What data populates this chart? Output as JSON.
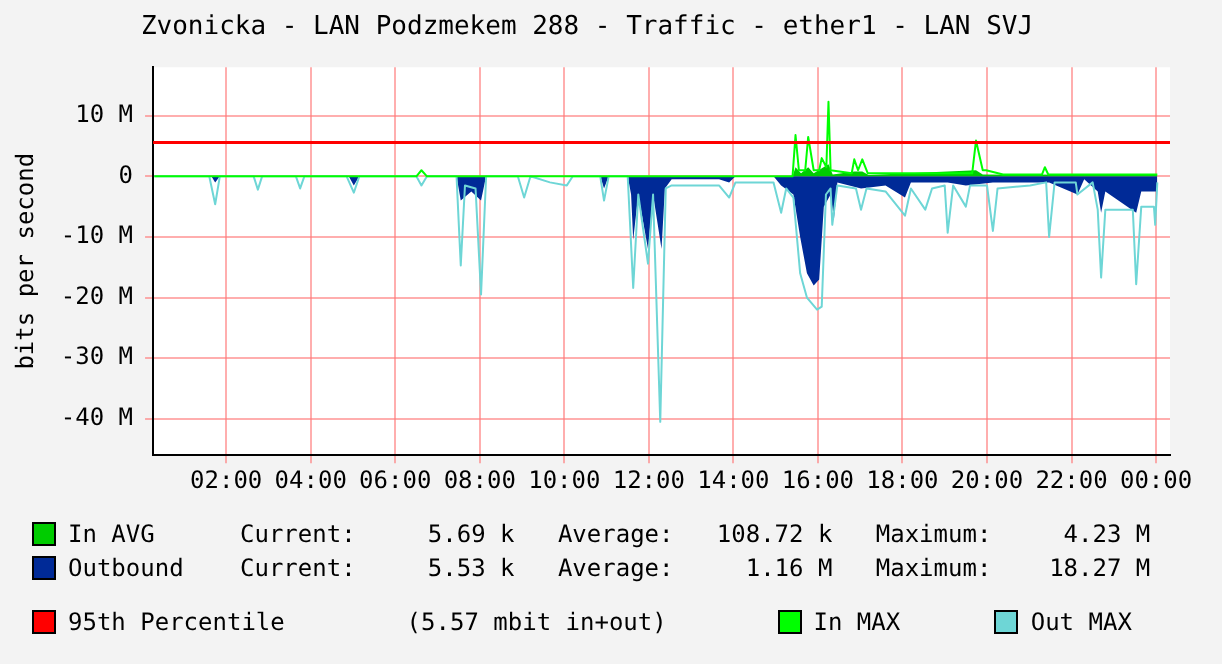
{
  "chart_data": {
    "type": "area",
    "title": "Zvonicka - LAN Podzmekem 288 - Traffic - ether1 - LAN SVJ",
    "ylabel": "bits per second",
    "xlim": [
      0.27,
      24.33
    ],
    "xticks": [
      {
        "value": 2,
        "label": "02:00"
      },
      {
        "value": 4,
        "label": "04:00"
      },
      {
        "value": 6,
        "label": "06:00"
      },
      {
        "value": 8,
        "label": "08:00"
      },
      {
        "value": 10,
        "label": "10:00"
      },
      {
        "value": 12,
        "label": "12:00"
      },
      {
        "value": 14,
        "label": "14:00"
      },
      {
        "value": 16,
        "label": "16:00"
      },
      {
        "value": 18,
        "label": "18:00"
      },
      {
        "value": 20,
        "label": "20:00"
      },
      {
        "value": 22,
        "label": "22:00"
      },
      {
        "value": 24,
        "label": "00:00"
      }
    ],
    "ylim": [
      -46,
      18
    ],
    "yticks": [
      {
        "value": -40,
        "label": "-40 M"
      },
      {
        "value": -30,
        "label": "-30 M"
      },
      {
        "value": -20,
        "label": "-20 M"
      },
      {
        "value": -10,
        "label": "-10 M"
      },
      0,
      {
        "value": 10,
        "label": "10 M"
      }
    ],
    "grid": true,
    "legend": "bottom",
    "series": [
      {
        "name": "In AVG",
        "color": "#00cc00",
        "x": [
          0.3,
          15.4,
          15.47,
          15.6,
          15.77,
          15.9,
          16.25,
          16.35,
          16.86,
          17.05,
          17.2,
          19.74,
          19.9,
          24.03
        ],
        "values": [
          0,
          0,
          1.5,
          0.5,
          1.5,
          0.5,
          2,
          0.3,
          0.8,
          0.8,
          0.2,
          1,
          0.3,
          0.2
        ]
      },
      {
        "name": "Outbound",
        "color": "#002a97",
        "x": [
          0.3,
          1.65,
          1.74,
          1.85,
          4.9,
          5.02,
          5.15,
          7.45,
          7.55,
          7.8,
          8.03,
          8.15,
          10.85,
          10.94,
          11.05,
          11.5,
          11.58,
          11.63,
          11.75,
          11.98,
          12.1,
          12.3,
          12.38,
          12.54,
          13.66,
          13.9,
          14.05,
          14.95,
          15.13,
          15.42,
          15.58,
          15.74,
          15.9,
          16.03,
          16.14,
          16.3,
          16.38,
          16.46,
          17.02,
          17.6,
          18.06,
          18.2,
          19.07,
          19.5,
          20.14,
          21.47,
          22.14,
          22.3,
          22.62,
          22.7,
          22.8,
          23.53,
          23.65,
          24.03
        ],
        "values": [
          0,
          0,
          -1,
          0,
          0,
          -1.5,
          0,
          0,
          -4,
          -2.5,
          -4,
          0,
          0,
          -2,
          0,
          0,
          -3,
          -10.5,
          -3,
          -12,
          -3,
          -12,
          -2,
          -0.5,
          -0.5,
          -1,
          0,
          0,
          -1.5,
          -3,
          -10,
          -16,
          -18,
          -17,
          -5,
          -3,
          -7,
          -1,
          -2,
          -1.5,
          -3.5,
          -1,
          -1,
          -1.5,
          -1,
          -1,
          -3,
          -0.5,
          -2.5,
          -6,
          -2.5,
          -6,
          -2.5,
          -2.5
        ]
      },
      {
        "name": "In MAX",
        "type": "line",
        "color": "#00ff00",
        "x": [
          0.3,
          6.5,
          6.62,
          6.75,
          15.4,
          15.47,
          15.55,
          15.61,
          15.7,
          15.77,
          15.9,
          16.03,
          16.09,
          16.2,
          16.25,
          16.3,
          16.8,
          16.86,
          16.95,
          17.05,
          17.18,
          19.65,
          19.74,
          19.9,
          19.98,
          20.38,
          21.3,
          21.37,
          21.45,
          24.03
        ],
        "values": [
          0,
          0,
          1,
          0,
          0,
          6.8,
          1,
          1,
          1,
          6.5,
          1,
          1,
          3,
          1.5,
          12.3,
          1,
          0.5,
          2.8,
          1,
          2.8,
          0.5,
          0.5,
          5.9,
          1,
          1,
          0.3,
          0.3,
          1.5,
          0.3,
          0.3
        ]
      },
      {
        "name": "Out MAX",
        "type": "line",
        "color": "#6ed6d6",
        "x": [
          0.3,
          1.6,
          1.74,
          1.85,
          2.65,
          2.75,
          2.85,
          3.65,
          3.75,
          3.85,
          4.85,
          5.02,
          5.15,
          6.5,
          6.62,
          6.75,
          7.45,
          7.55,
          7.65,
          7.9,
          8.03,
          8.15,
          8.9,
          9.05,
          9.2,
          9.66,
          10.06,
          10.2,
          10.85,
          10.94,
          11.05,
          11.5,
          11.63,
          11.75,
          11.98,
          12.1,
          12.27,
          12.4,
          12.54,
          13.66,
          13.9,
          14.05,
          14.46,
          14.95,
          15.13,
          15.25,
          15.42,
          15.58,
          15.74,
          15.98,
          16.09,
          16.19,
          16.3,
          16.34,
          16.46,
          16.9,
          17.02,
          17.15,
          17.6,
          18.06,
          18.2,
          18.54,
          18.7,
          19.0,
          19.07,
          19.2,
          19.5,
          19.6,
          20.0,
          20.14,
          20.25,
          21.02,
          21.4,
          21.47,
          21.6,
          22.1,
          22.14,
          22.5,
          22.62,
          22.7,
          22.8,
          23.45,
          23.53,
          23.65,
          23.95,
          23.98,
          24.03
        ],
        "values": [
          0,
          0,
          -4.6,
          0,
          0,
          -2.2,
          0,
          0,
          -2,
          0,
          0,
          -2.7,
          0,
          0,
          -1.5,
          0,
          0,
          -14.7,
          -1.5,
          -2,
          -19.5,
          0,
          0,
          -3.5,
          0,
          -1,
          -1.5,
          0,
          0,
          -4,
          0,
          0,
          -18.4,
          -3,
          -14.4,
          -3,
          -40.5,
          -2,
          -1.5,
          -1.5,
          -3.5,
          -1,
          -1,
          -1,
          -6,
          -2,
          -3.5,
          -16,
          -20,
          -22,
          -21.5,
          -3,
          -2,
          -8,
          -1.5,
          -2,
          -5.5,
          -2,
          -2.5,
          -6.5,
          -2,
          -5.5,
          -2,
          -1.5,
          -9.3,
          -1.5,
          -5,
          -1.5,
          -1.5,
          -9,
          -2,
          -1.5,
          -1,
          -10,
          -1,
          -1,
          -3,
          -1,
          -5.5,
          -16.7,
          -5.5,
          -5.5,
          -17.8,
          -5,
          -5,
          -8,
          -1
        ]
      }
    ],
    "ref_lines": [
      {
        "axis": "y",
        "value": 5.57,
        "label": "95th Percentile",
        "color": "#ff0000"
      }
    ],
    "annotations": [
      "Current:     5.69 k   Average:   108.72 k   Maximum:     4.23 M",
      "Current:     5.53 k   Average:     1.16 M   Maximum:    18.27 M",
      "(5.57 mbit in+out)"
    ]
  }
}
